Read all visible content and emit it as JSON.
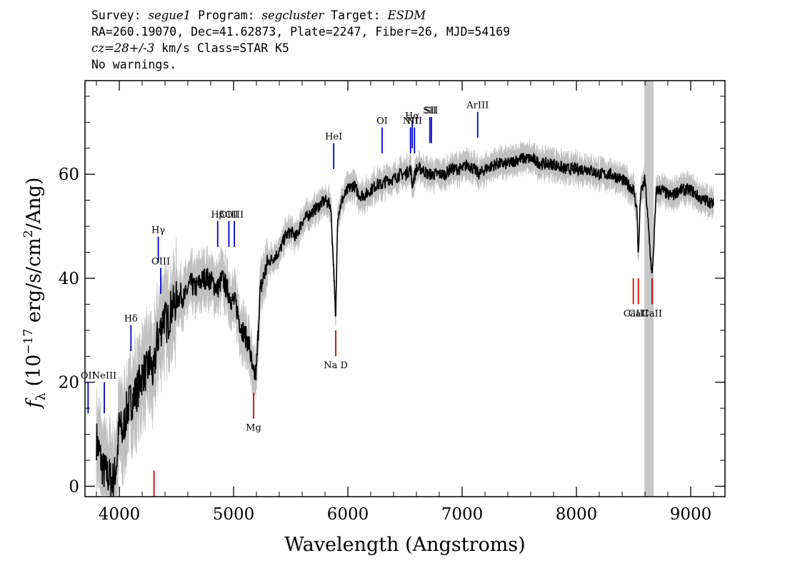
{
  "header": {
    "line1": {
      "survey_label": "Survey: ",
      "survey": "segue1",
      "program_label": " Program: ",
      "program": "segcluster",
      "target_label": " Target: ",
      "target": "ESDM"
    },
    "line2": "RA=260.19070, Dec=41.62873, Plate=2247, Fiber=26, MJD=54169",
    "line3": {
      "cz": "cz=28+/-3",
      "rest": " km/s Class=STAR K5"
    },
    "line4": "No warnings."
  },
  "chart_data": {
    "type": "line",
    "xlabel": "Wavelength (Angstroms)",
    "ylabel": "f_λ (10^-17 erg/s/cm^2/Ang)",
    "ylabel_parts": {
      "f": "f",
      "lambda": "λ",
      "open": " (10",
      "exp1": "−17",
      "mid": " erg/s/cm",
      "exp2": "2",
      "close": "/Ang)"
    },
    "xlim": [
      3700,
      9300
    ],
    "ylim": [
      -2,
      78
    ],
    "xticks": [
      4000,
      5000,
      6000,
      7000,
      8000,
      9000
    ],
    "yticks": [
      0,
      20,
      40,
      60
    ],
    "grid": false,
    "colors": {
      "spectrum": "#000000",
      "error_band": "#c0c0c0",
      "masked_region": "#c8c8c8",
      "emission_line": "#0000cc",
      "absorption_line": "#cc0000"
    },
    "masked_region": [
      8595,
      8675
    ],
    "spectrum": [
      [
        3800,
        9
      ],
      [
        3830,
        6
      ],
      [
        3860,
        3
      ],
      [
        3900,
        2
      ],
      [
        3950,
        1
      ],
      [
        3980,
        5
      ],
      [
        4000,
        12
      ],
      [
        4030,
        10
      ],
      [
        4060,
        14
      ],
      [
        4090,
        16
      ],
      [
        4120,
        17
      ],
      [
        4150,
        18
      ],
      [
        4180,
        20
      ],
      [
        4210,
        22
      ],
      [
        4240,
        22
      ],
      [
        4270,
        24
      ],
      [
        4300,
        21
      ],
      [
        4330,
        28
      ],
      [
        4360,
        30
      ],
      [
        4390,
        33
      ],
      [
        4420,
        31
      ],
      [
        4450,
        34
      ],
      [
        4480,
        35
      ],
      [
        4510,
        36
      ],
      [
        4540,
        37
      ],
      [
        4570,
        36
      ],
      [
        4600,
        38
      ],
      [
        4630,
        39
      ],
      [
        4660,
        38
      ],
      [
        4700,
        39
      ],
      [
        4740,
        40
      ],
      [
        4780,
        40
      ],
      [
        4820,
        39
      ],
      [
        4860,
        38
      ],
      [
        4900,
        40
      ],
      [
        4940,
        38
      ],
      [
        4980,
        36
      ],
      [
        5020,
        35
      ],
      [
        5060,
        31
      ],
      [
        5100,
        29
      ],
      [
        5140,
        27
      ],
      [
        5170,
        21
      ],
      [
        5200,
        22
      ],
      [
        5230,
        37
      ],
      [
        5260,
        40
      ],
      [
        5300,
        43
      ],
      [
        5350,
        44
      ],
      [
        5400,
        45
      ],
      [
        5450,
        48
      ],
      [
        5500,
        49
      ],
      [
        5550,
        48
      ],
      [
        5600,
        51
      ],
      [
        5650,
        52
      ],
      [
        5700,
        53
      ],
      [
        5750,
        54
      ],
      [
        5800,
        55
      ],
      [
        5850,
        54
      ],
      [
        5880,
        40
      ],
      [
        5893,
        31
      ],
      [
        5910,
        52
      ],
      [
        5950,
        55
      ],
      [
        6000,
        57
      ],
      [
        6050,
        58
      ],
      [
        6100,
        56
      ],
      [
        6150,
        56
      ],
      [
        6200,
        57
      ],
      [
        6250,
        58
      ],
      [
        6300,
        58
      ],
      [
        6350,
        59
      ],
      [
        6400,
        59
      ],
      [
        6450,
        60
      ],
      [
        6500,
        60
      ],
      [
        6550,
        61
      ],
      [
        6563,
        58
      ],
      [
        6600,
        61
      ],
      [
        6650,
        61
      ],
      [
        6700,
        60
      ],
      [
        6750,
        60
      ],
      [
        6800,
        60
      ],
      [
        6850,
        60
      ],
      [
        6900,
        61
      ],
      [
        6950,
        61
      ],
      [
        7000,
        61
      ],
      [
        7050,
        62
      ],
      [
        7100,
        61
      ],
      [
        7150,
        60
      ],
      [
        7200,
        61
      ],
      [
        7300,
        62
      ],
      [
        7400,
        62
      ],
      [
        7500,
        63
      ],
      [
        7600,
        63
      ],
      [
        7700,
        62
      ],
      [
        7800,
        62
      ],
      [
        7900,
        61
      ],
      [
        8000,
        61
      ],
      [
        8100,
        61
      ],
      [
        8200,
        60
      ],
      [
        8300,
        60
      ],
      [
        8400,
        59
      ],
      [
        8450,
        58
      ],
      [
        8500,
        57
      ],
      [
        8530,
        53
      ],
      [
        8542,
        44
      ],
      [
        8560,
        56
      ],
      [
        8600,
        59
      ],
      [
        8662,
        40
      ],
      [
        8700,
        57
      ],
      [
        8750,
        57
      ],
      [
        8800,
        56
      ],
      [
        8850,
        56
      ],
      [
        8900,
        57
      ],
      [
        8950,
        57
      ],
      [
        9000,
        57
      ],
      [
        9050,
        56
      ],
      [
        9100,
        55
      ],
      [
        9150,
        55
      ],
      [
        9200,
        54
      ]
    ],
    "emission_lines": [
      {
        "label": "OII",
        "wave": 3727,
        "y0": 14,
        "y1": 20
      },
      {
        "label": "NeIII",
        "wave": 3869,
        "y0": 14,
        "y1": 20
      },
      {
        "label": "Hδ",
        "wave": 4102,
        "y0": 26,
        "y1": 31
      },
      {
        "label": "Hγ",
        "wave": 4341,
        "y0": 43,
        "y1": 48
      },
      {
        "label": "OIII",
        "wave": 4363,
        "y0": 37,
        "y1": 42
      },
      {
        "label": "Hβ",
        "wave": 4861,
        "y0": 46,
        "y1": 51
      },
      {
        "label": "OIII",
        "wave": 4959,
        "y0": 46,
        "y1": 51
      },
      {
        "label": "OIII",
        "wave": 5007,
        "y0": 46,
        "y1": 51
      },
      {
        "label": "HeI",
        "wave": 5876,
        "y0": 61,
        "y1": 66
      },
      {
        "label": "OI",
        "wave": 6300,
        "y0": 64,
        "y1": 69
      },
      {
        "label": "NII",
        "wave": 6548,
        "y0": 64,
        "y1": 69
      },
      {
        "label": "Hα",
        "wave": 6563,
        "y0": 65,
        "y1": 70
      },
      {
        "label": "NII",
        "wave": 6583,
        "y0": 64,
        "y1": 69
      },
      {
        "label": "SII",
        "wave": 6717,
        "y0": 66,
        "y1": 71
      },
      {
        "label": "SII",
        "wave": 6731,
        "y0": 66,
        "y1": 71
      },
      {
        "label": "ArIII",
        "wave": 7136,
        "y0": 67,
        "y1": 72
      }
    ],
    "absorption_lines": [
      {
        "label": "",
        "wave": 4304,
        "y0": -2,
        "y1": 3
      },
      {
        "label": "Mg",
        "wave": 5175,
        "y0": 13,
        "y1": 18
      },
      {
        "label": "Na D",
        "wave": 5894,
        "y0": 25,
        "y1": 30
      },
      {
        "label": "CaII",
        "wave": 8498,
        "y0": 35,
        "y1": 40
      },
      {
        "label": "CaII",
        "wave": 8542,
        "y0": 35,
        "y1": 40
      },
      {
        "label": "CaII",
        "wave": 8662,
        "y0": 35,
        "y1": 40
      }
    ]
  }
}
